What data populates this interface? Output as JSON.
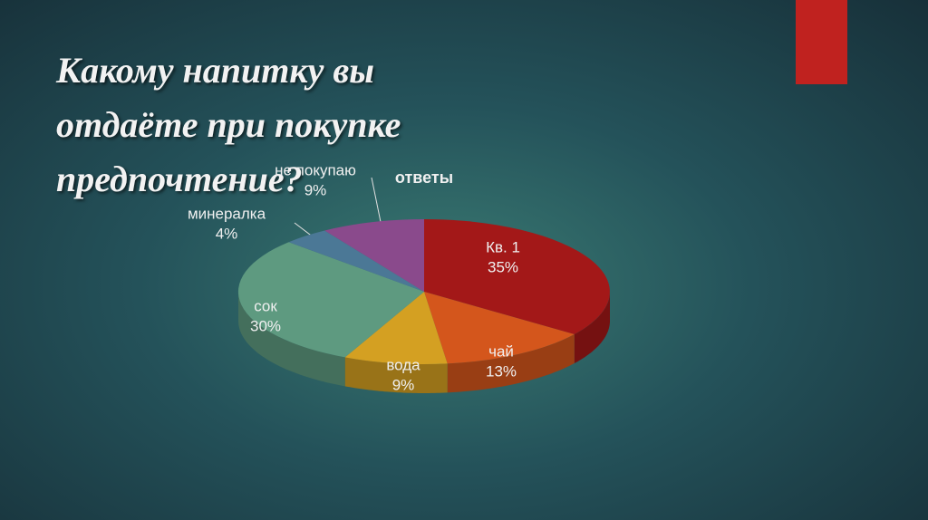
{
  "header": {
    "title": "Какому напитку вы отдаёте при покупке предпочтение?"
  },
  "chart_data": {
    "type": "pie",
    "title": "ответы",
    "categories": [
      "Кв. 1",
      "чай",
      "вода",
      "сок",
      "минералка",
      "не покупаю"
    ],
    "values": [
      35,
      13,
      9,
      30,
      4,
      9
    ],
    "value_labels": [
      "35%",
      "13%",
      "9%",
      "30%",
      "4%",
      "9%"
    ],
    "colors": [
      "#a31818",
      "#d4561c",
      "#d4a022",
      "#5e9a80",
      "#4b7896",
      "#8a4a8c"
    ]
  }
}
